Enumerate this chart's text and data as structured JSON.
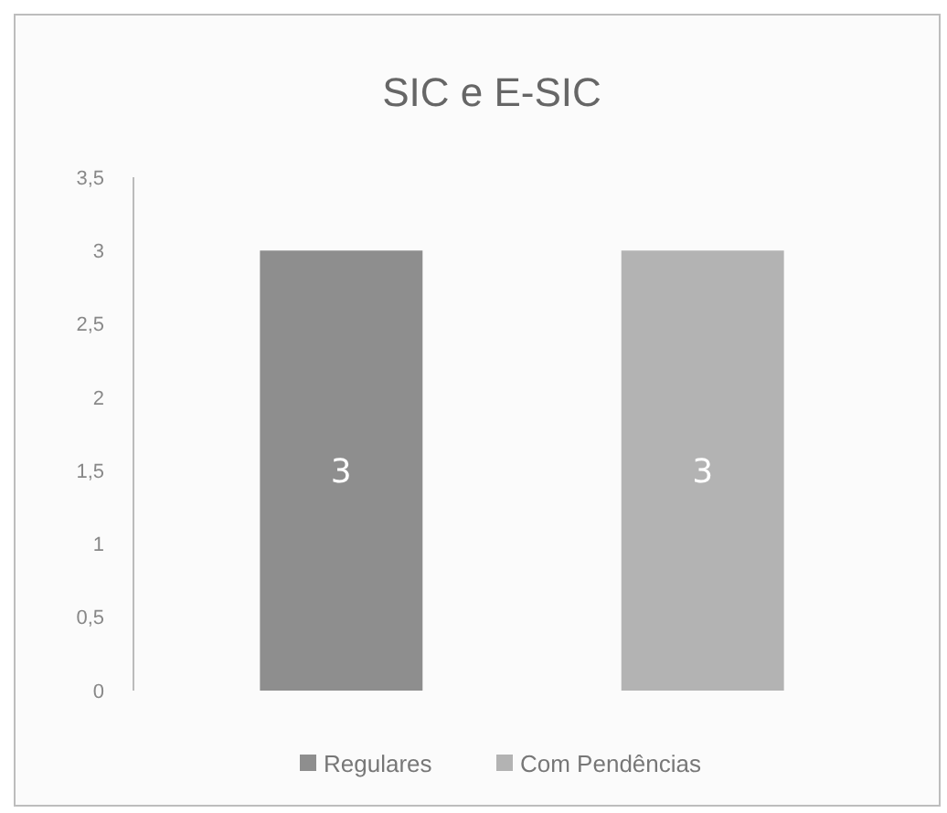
{
  "chart_data": {
    "type": "bar",
    "title": "SIC e E-SIC",
    "categories": [
      null,
      null
    ],
    "series": [
      {
        "name": "Regulares",
        "color": "#8e8e8e",
        "values": [
          3,
          null
        ]
      },
      {
        "name": "Com Pendências",
        "color": "#b3b3b3",
        "values": [
          null,
          3
        ]
      }
    ],
    "ylim": [
      0,
      3.5
    ],
    "yticks": [
      0,
      {
        "value": 0.5,
        "label": "0,5"
      },
      1,
      {
        "value": 1.5,
        "label": "1,5"
      },
      2,
      {
        "value": 2.5,
        "label": "2,5"
      },
      3,
      {
        "value": 3.5,
        "label": "3,5"
      }
    ],
    "stacked": true,
    "grid": false,
    "legend": "bottom",
    "data_labels": true
  }
}
